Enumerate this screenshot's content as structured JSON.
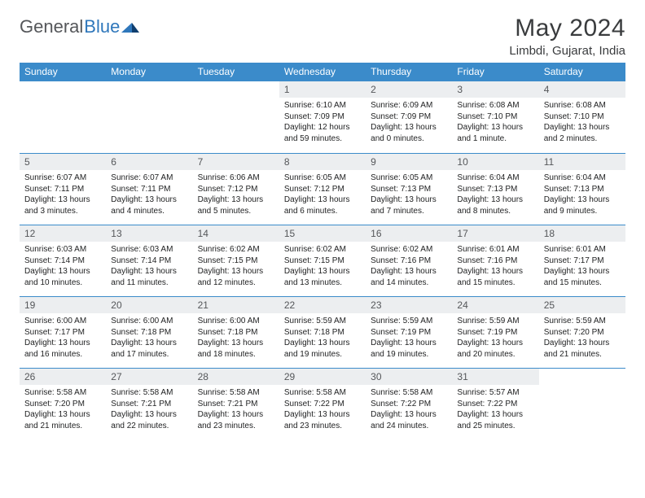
{
  "brand": {
    "part1": "General",
    "part2": "Blue"
  },
  "title": "May 2024",
  "location": "Limbdi, Gujarat, India",
  "colors": {
    "header_bg": "#3b8bca",
    "header_text": "#ffffff",
    "daynum_bg": "#eceef0",
    "daynum_text": "#55575a",
    "text": "#1e1f20",
    "rule": "#3b8bca",
    "brand_gray": "#55575a",
    "brand_blue": "#2f77bb"
  },
  "weekdays": [
    "Sunday",
    "Monday",
    "Tuesday",
    "Wednesday",
    "Thursday",
    "Friday",
    "Saturday"
  ],
  "layout": {
    "columns": 7,
    "rows": 5,
    "first_weekday_index": 3,
    "days_in_month": 31
  },
  "days": [
    {
      "n": 1,
      "sunrise": "6:10 AM",
      "sunset": "7:09 PM",
      "daylight": "12 hours and 59 minutes."
    },
    {
      "n": 2,
      "sunrise": "6:09 AM",
      "sunset": "7:09 PM",
      "daylight": "13 hours and 0 minutes."
    },
    {
      "n": 3,
      "sunrise": "6:08 AM",
      "sunset": "7:10 PM",
      "daylight": "13 hours and 1 minute."
    },
    {
      "n": 4,
      "sunrise": "6:08 AM",
      "sunset": "7:10 PM",
      "daylight": "13 hours and 2 minutes."
    },
    {
      "n": 5,
      "sunrise": "6:07 AM",
      "sunset": "7:11 PM",
      "daylight": "13 hours and 3 minutes."
    },
    {
      "n": 6,
      "sunrise": "6:07 AM",
      "sunset": "7:11 PM",
      "daylight": "13 hours and 4 minutes."
    },
    {
      "n": 7,
      "sunrise": "6:06 AM",
      "sunset": "7:12 PM",
      "daylight": "13 hours and 5 minutes."
    },
    {
      "n": 8,
      "sunrise": "6:05 AM",
      "sunset": "7:12 PM",
      "daylight": "13 hours and 6 minutes."
    },
    {
      "n": 9,
      "sunrise": "6:05 AM",
      "sunset": "7:13 PM",
      "daylight": "13 hours and 7 minutes."
    },
    {
      "n": 10,
      "sunrise": "6:04 AM",
      "sunset": "7:13 PM",
      "daylight": "13 hours and 8 minutes."
    },
    {
      "n": 11,
      "sunrise": "6:04 AM",
      "sunset": "7:13 PM",
      "daylight": "13 hours and 9 minutes."
    },
    {
      "n": 12,
      "sunrise": "6:03 AM",
      "sunset": "7:14 PM",
      "daylight": "13 hours and 10 minutes."
    },
    {
      "n": 13,
      "sunrise": "6:03 AM",
      "sunset": "7:14 PM",
      "daylight": "13 hours and 11 minutes."
    },
    {
      "n": 14,
      "sunrise": "6:02 AM",
      "sunset": "7:15 PM",
      "daylight": "13 hours and 12 minutes."
    },
    {
      "n": 15,
      "sunrise": "6:02 AM",
      "sunset": "7:15 PM",
      "daylight": "13 hours and 13 minutes."
    },
    {
      "n": 16,
      "sunrise": "6:02 AM",
      "sunset": "7:16 PM",
      "daylight": "13 hours and 14 minutes."
    },
    {
      "n": 17,
      "sunrise": "6:01 AM",
      "sunset": "7:16 PM",
      "daylight": "13 hours and 15 minutes."
    },
    {
      "n": 18,
      "sunrise": "6:01 AM",
      "sunset": "7:17 PM",
      "daylight": "13 hours and 15 minutes."
    },
    {
      "n": 19,
      "sunrise": "6:00 AM",
      "sunset": "7:17 PM",
      "daylight": "13 hours and 16 minutes."
    },
    {
      "n": 20,
      "sunrise": "6:00 AM",
      "sunset": "7:18 PM",
      "daylight": "13 hours and 17 minutes."
    },
    {
      "n": 21,
      "sunrise": "6:00 AM",
      "sunset": "7:18 PM",
      "daylight": "13 hours and 18 minutes."
    },
    {
      "n": 22,
      "sunrise": "5:59 AM",
      "sunset": "7:18 PM",
      "daylight": "13 hours and 19 minutes."
    },
    {
      "n": 23,
      "sunrise": "5:59 AM",
      "sunset": "7:19 PM",
      "daylight": "13 hours and 19 minutes."
    },
    {
      "n": 24,
      "sunrise": "5:59 AM",
      "sunset": "7:19 PM",
      "daylight": "13 hours and 20 minutes."
    },
    {
      "n": 25,
      "sunrise": "5:59 AM",
      "sunset": "7:20 PM",
      "daylight": "13 hours and 21 minutes."
    },
    {
      "n": 26,
      "sunrise": "5:58 AM",
      "sunset": "7:20 PM",
      "daylight": "13 hours and 21 minutes."
    },
    {
      "n": 27,
      "sunrise": "5:58 AM",
      "sunset": "7:21 PM",
      "daylight": "13 hours and 22 minutes."
    },
    {
      "n": 28,
      "sunrise": "5:58 AM",
      "sunset": "7:21 PM",
      "daylight": "13 hours and 23 minutes."
    },
    {
      "n": 29,
      "sunrise": "5:58 AM",
      "sunset": "7:22 PM",
      "daylight": "13 hours and 23 minutes."
    },
    {
      "n": 30,
      "sunrise": "5:58 AM",
      "sunset": "7:22 PM",
      "daylight": "13 hours and 24 minutes."
    },
    {
      "n": 31,
      "sunrise": "5:57 AM",
      "sunset": "7:22 PM",
      "daylight": "13 hours and 25 minutes."
    }
  ],
  "labels": {
    "sunrise": "Sunrise:",
    "sunset": "Sunset:",
    "daylight": "Daylight:"
  }
}
